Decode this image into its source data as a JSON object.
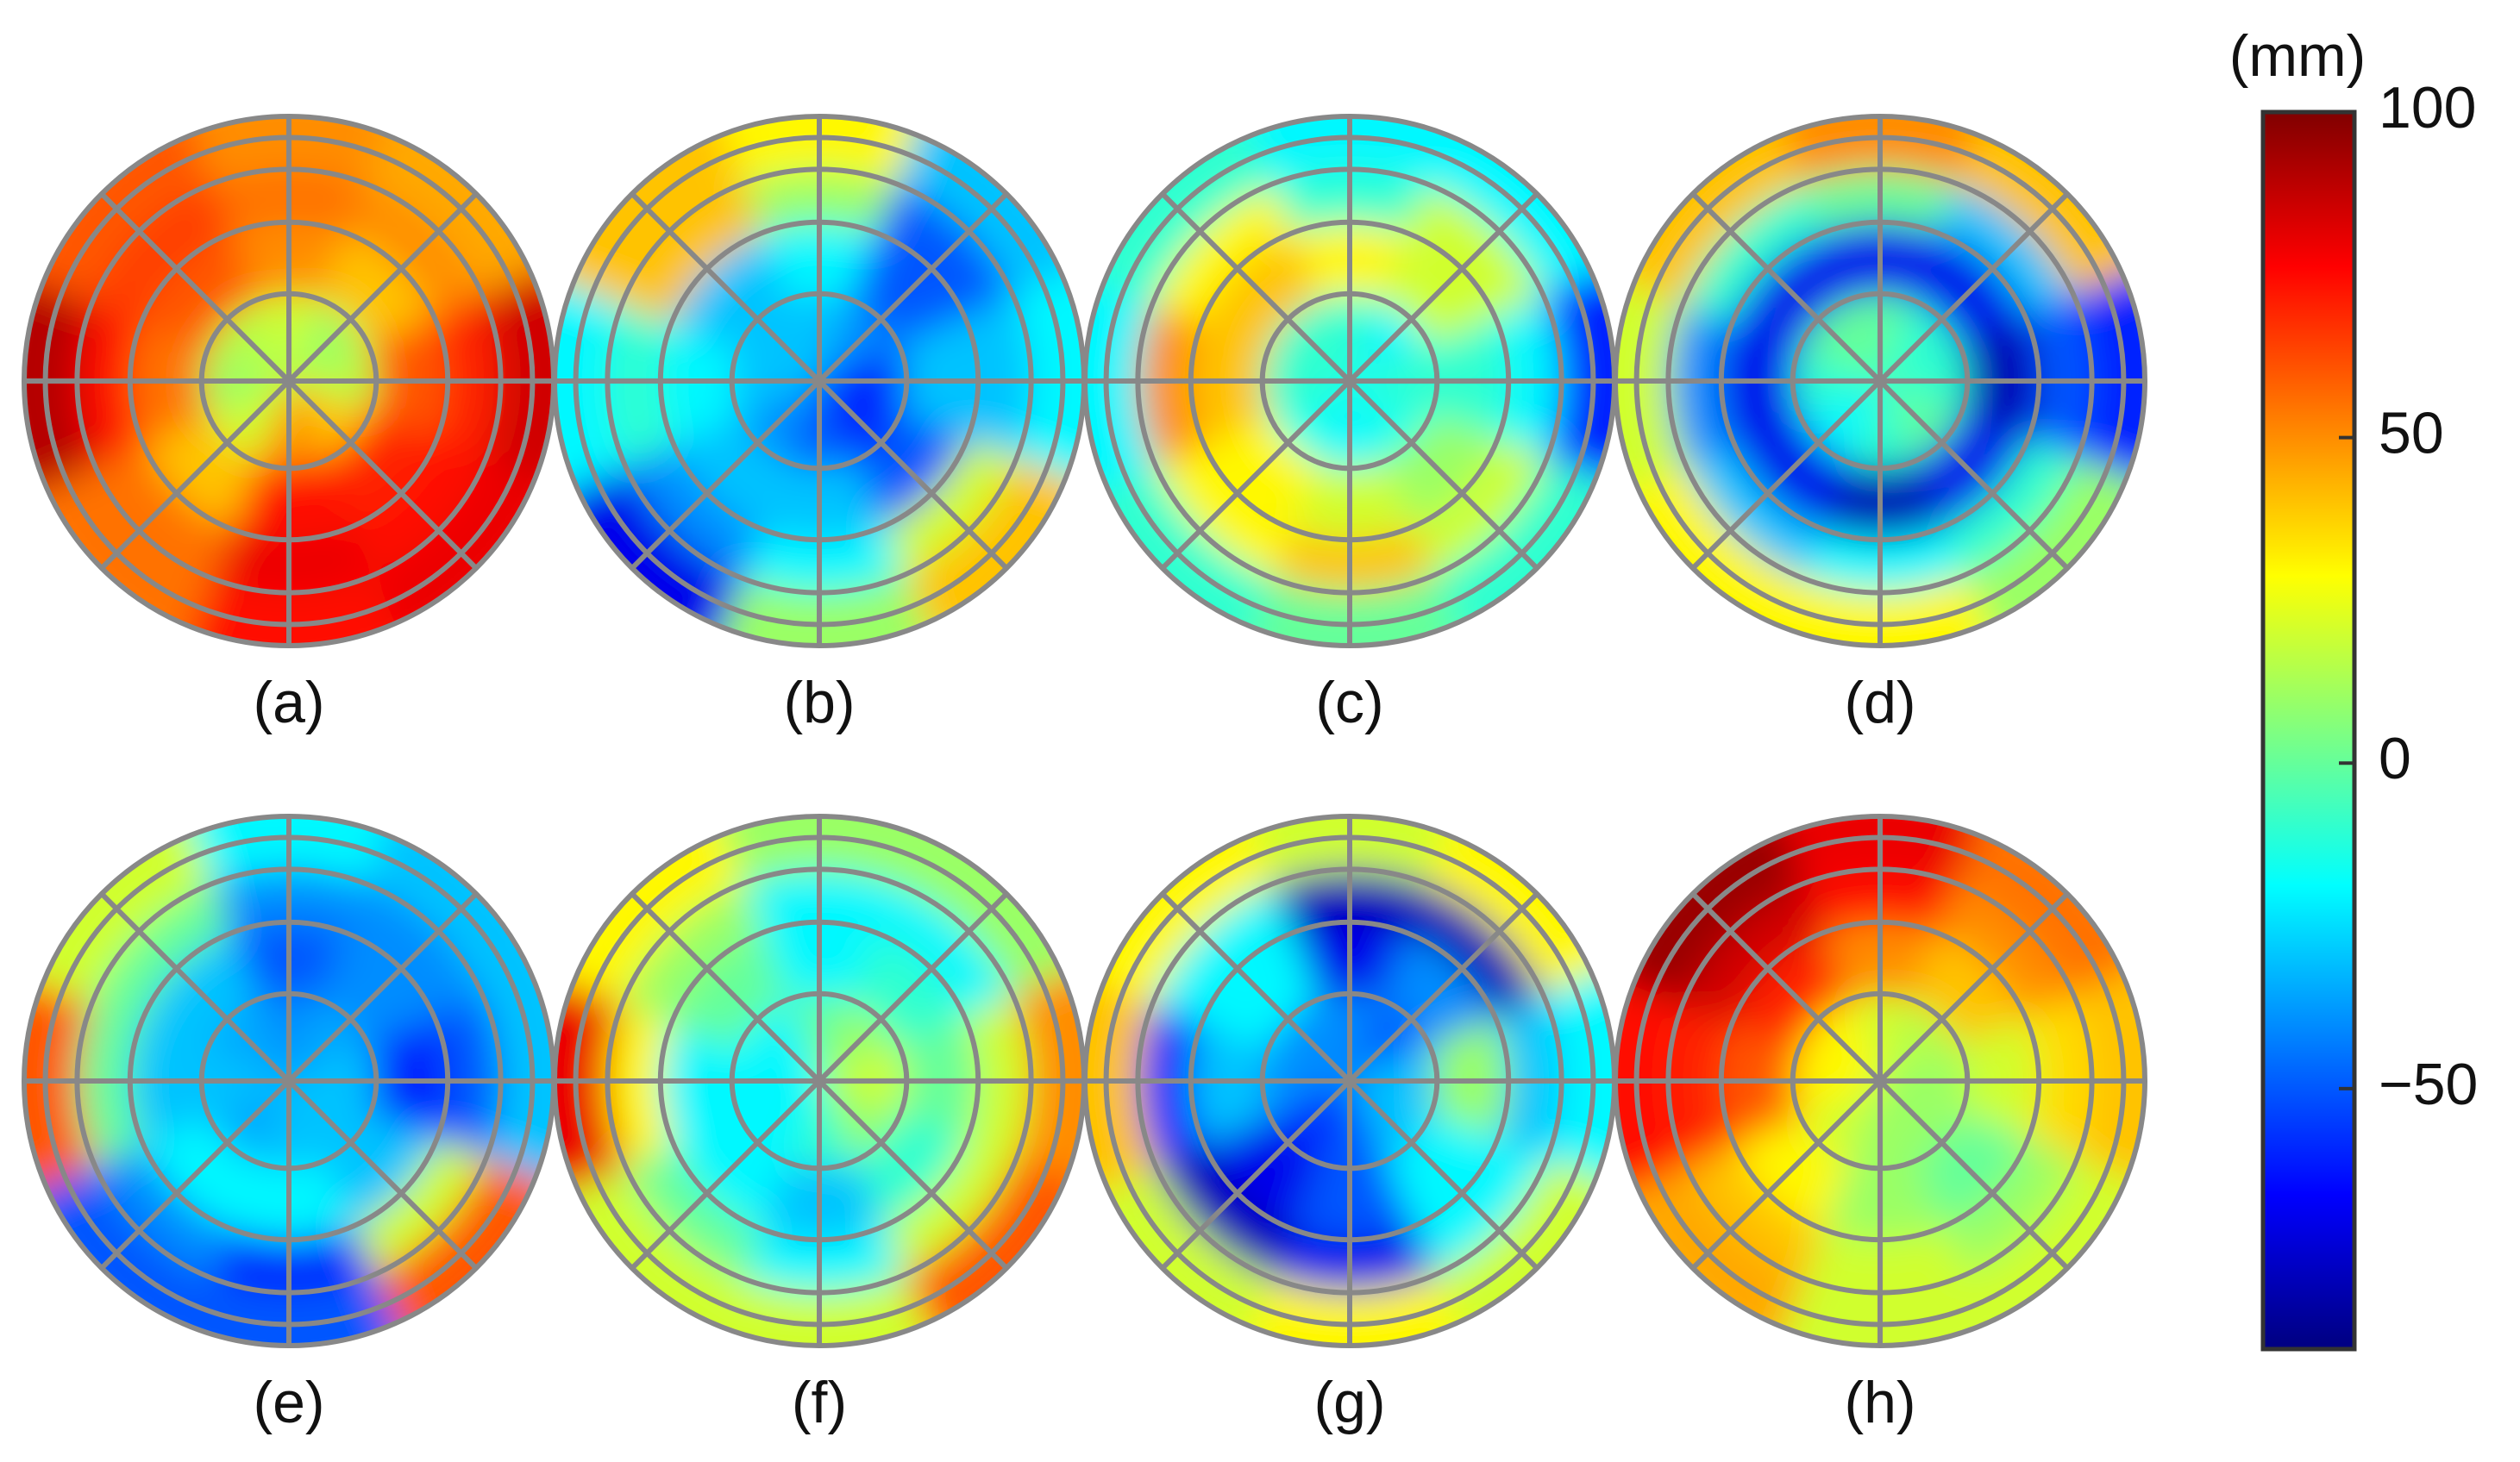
{
  "chart_data": {
    "type": "polar-heatmap",
    "panels": [
      {
        "label": "(a)",
        "values": [
          [
            20,
            10,
            15,
            40,
            50,
            20,
            10,
            15
          ],
          [
            50,
            40,
            60,
            70,
            75,
            40,
            55,
            60
          ],
          [
            55,
            50,
            70,
            75,
            80,
            55,
            75,
            65
          ],
          [
            50,
            45,
            85,
            80,
            75,
            55,
            90,
            60
          ]
        ]
      },
      {
        "label": "(b)",
        "values": [
          [
            -30,
            -40,
            -60,
            -60,
            -50,
            -40,
            -30,
            -30
          ],
          [
            -20,
            -50,
            -30,
            -50,
            -30,
            -30,
            -20,
            -30
          ],
          [
            10,
            -50,
            -30,
            20,
            -20,
            -40,
            -10,
            40
          ],
          [
            30,
            -30,
            -20,
            40,
            10,
            -70,
            -20,
            40
          ]
        ]
      },
      {
        "label": "(c)",
        "values": [
          [
            -10,
            -20,
            -10,
            -15,
            -20,
            -15,
            -10,
            -10
          ],
          [
            30,
            20,
            -10,
            10,
            20,
            30,
            40,
            40
          ],
          [
            -10,
            20,
            -20,
            20,
            40,
            30,
            50,
            30
          ],
          [
            -20,
            -20,
            -60,
            -10,
            0,
            -10,
            -20,
            -10
          ]
        ]
      },
      {
        "label": "(d)",
        "values": [
          [
            0,
            -10,
            -10,
            0,
            -10,
            -20,
            -10,
            0
          ],
          [
            -70,
            -70,
            -80,
            -70,
            -80,
            -70,
            -70,
            -70
          ],
          [
            0,
            -30,
            -50,
            -10,
            -20,
            -30,
            -40,
            -10
          ],
          [
            50,
            40,
            -60,
            10,
            30,
            30,
            20,
            40
          ]
        ]
      },
      {
        "label": "(e)",
        "values": [
          [
            -40,
            -35,
            -30,
            -30,
            -30,
            -35,
            -30,
            -35
          ],
          [
            -50,
            -40,
            -60,
            -30,
            -20,
            -20,
            -30,
            -30
          ],
          [
            -40,
            -40,
            -50,
            20,
            -60,
            -40,
            0,
            0
          ],
          [
            -20,
            -30,
            -30,
            60,
            -50,
            -50,
            60,
            20
          ]
        ]
      },
      {
        "label": "(f)",
        "values": [
          [
            0,
            10,
            20,
            10,
            -10,
            -20,
            -20,
            -20
          ],
          [
            -20,
            -10,
            0,
            -10,
            -30,
            -20,
            -20,
            0
          ],
          [
            -20,
            -20,
            20,
            20,
            -20,
            0,
            30,
            10
          ],
          [
            10,
            10,
            50,
            60,
            20,
            20,
            80,
            30
          ]
        ]
      },
      {
        "label": "(g)",
        "values": [
          [
            -40,
            -50,
            -30,
            -30,
            -50,
            -60,
            -40,
            -40
          ],
          [
            -70,
            -40,
            10,
            -20,
            -50,
            -70,
            -30,
            -20
          ],
          [
            -80,
            -80,
            -30,
            -20,
            -70,
            -80,
            -60,
            -20
          ],
          [
            20,
            30,
            -20,
            20,
            30,
            20,
            40,
            30
          ]
        ]
      },
      {
        "label": "(h)",
        "values": [
          [
            20,
            15,
            10,
            10,
            10,
            20,
            30,
            30
          ],
          [
            50,
            40,
            20,
            0,
            10,
            30,
            60,
            70
          ],
          [
            75,
            50,
            35,
            10,
            20,
            40,
            70,
            85
          ],
          [
            80,
            55,
            40,
            20,
            20,
            45,
            75,
            95
          ]
        ]
      }
    ],
    "colorbar": {
      "label": "(mm)",
      "zlim": [
        -90,
        100
      ],
      "zticks": [
        100,
        50,
        0,
        {
          "value": -50,
          "label": "−50"
        }
      ],
      "colormap": "jet"
    }
  }
}
